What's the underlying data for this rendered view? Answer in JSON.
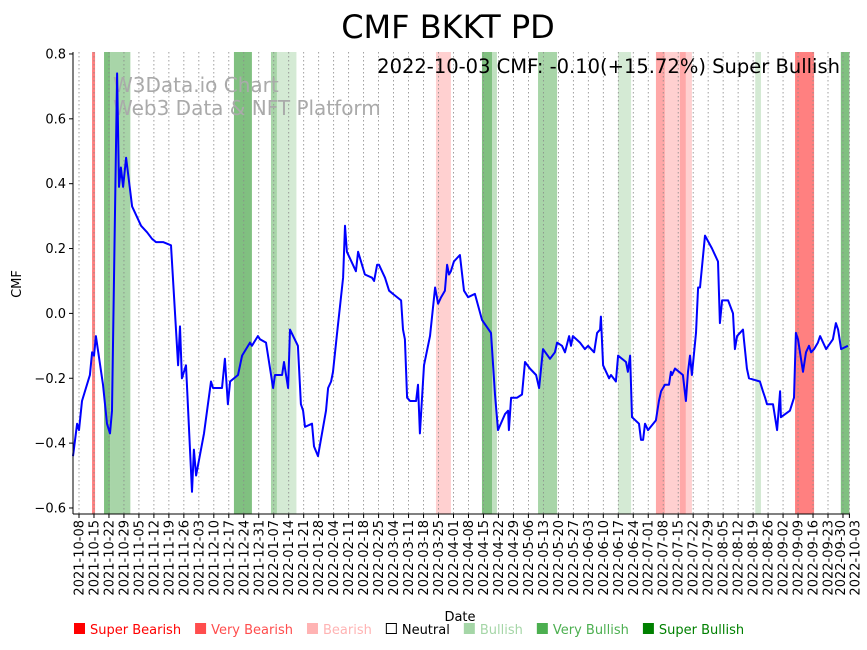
{
  "chart_data": {
    "type": "line",
    "title": "CMF BKKT PD",
    "annotation": "2022-10-03 CMF: -0.10(+15.72%) Super Bullish",
    "watermark": [
      "W3Data.io Chart",
      "Web3 Data & NFT Platform"
    ],
    "xlabel": "Date",
    "ylabel": "CMF",
    "x_start_date": "2021-10-08",
    "x_unit": "days since 2021-10-08",
    "xlim_days": [
      -3,
      360
    ],
    "ylim": [
      -0.62,
      0.8
    ],
    "y_ticks": [
      -0.6,
      -0.4,
      -0.2,
      0.0,
      0.2,
      0.4,
      0.6,
      0.8
    ],
    "y_tick_labels": [
      "−0.6",
      "−0.4",
      "−0.2",
      "0.0",
      "0.2",
      "0.4",
      "0.6",
      "0.8"
    ],
    "x_tick_labels": [
      "2021-10-08",
      "2021-10-15",
      "2021-10-22",
      "2021-10-29",
      "2021-11-05",
      "2021-11-12",
      "2021-11-19",
      "2021-11-26",
      "2021-12-03",
      "2021-12-10",
      "2021-12-17",
      "2021-12-24",
      "2021-12-31",
      "2022-01-07",
      "2022-01-14",
      "2022-01-21",
      "2022-01-28",
      "2022-02-04",
      "2022-02-11",
      "2022-02-18",
      "2022-02-25",
      "2022-03-04",
      "2022-03-11",
      "2022-03-18",
      "2022-03-25",
      "2022-04-01",
      "2022-04-08",
      "2022-04-15",
      "2022-04-22",
      "2022-04-29",
      "2022-05-06",
      "2022-05-13",
      "2022-05-20",
      "2022-05-27",
      "2022-06-03",
      "2022-06-10",
      "2022-06-17",
      "2022-06-24",
      "2022-07-01",
      "2022-07-08",
      "2022-07-15",
      "2022-07-22",
      "2022-07-29",
      "2022-08-05",
      "2022-08-12",
      "2022-08-19",
      "2022-08-26",
      "2022-09-02",
      "2022-09-09",
      "2022-09-16",
      "2022-09-23",
      "2022-09-30",
      "2022-10-03"
    ],
    "grid": "vertical dotted at each x tick",
    "line_color": "#0000ff",
    "series": [
      {
        "name": "CMF",
        "points": [
          [
            -2.8,
            -0.44
          ],
          [
            -0.9,
            -0.34
          ],
          [
            0,
            -0.36
          ],
          [
            1.4,
            -0.27
          ],
          [
            5.1,
            -0.19
          ],
          [
            6.1,
            -0.12
          ],
          [
            7.0,
            -0.13
          ],
          [
            7.9,
            -0.07
          ],
          [
            11.2,
            -0.22
          ],
          [
            13.1,
            -0.34
          ],
          [
            14.5,
            -0.37
          ],
          [
            15.4,
            -0.3
          ],
          [
            17.8,
            0.74
          ],
          [
            18.7,
            0.39
          ],
          [
            19.6,
            0.45
          ],
          [
            20.6,
            0.39
          ],
          [
            22.0,
            0.48
          ],
          [
            24.8,
            0.33
          ],
          [
            29.0,
            0.27
          ],
          [
            31.8,
            0.25
          ],
          [
            34.1,
            0.23
          ],
          [
            36.0,
            0.22
          ],
          [
            39.3,
            0.22
          ],
          [
            43.0,
            0.21
          ],
          [
            46.3,
            -0.16
          ],
          [
            47.2,
            -0.04
          ],
          [
            48.1,
            -0.2
          ],
          [
            50.0,
            -0.16
          ],
          [
            52.8,
            -0.55
          ],
          [
            53.7,
            -0.42
          ],
          [
            54.7,
            -0.5
          ],
          [
            58.4,
            -0.37
          ],
          [
            61.7,
            -0.21
          ],
          [
            62.6,
            -0.23
          ],
          [
            66.8,
            -0.23
          ],
          [
            68.2,
            -0.14
          ],
          [
            69.6,
            -0.28
          ],
          [
            70.6,
            -0.21
          ],
          [
            74.3,
            -0.19
          ],
          [
            76.2,
            -0.13
          ],
          [
            79.9,
            -0.09
          ],
          [
            80.8,
            -0.1
          ],
          [
            83.6,
            -0.07
          ],
          [
            84.6,
            -0.08
          ],
          [
            87.4,
            -0.09
          ],
          [
            90.7,
            -0.23
          ],
          [
            91.6,
            -0.19
          ],
          [
            94.9,
            -0.19
          ],
          [
            95.8,
            -0.15
          ],
          [
            97.7,
            -0.23
          ],
          [
            98.6,
            -0.05
          ],
          [
            102.3,
            -0.1
          ],
          [
            103.7,
            -0.28
          ],
          [
            104.7,
            -0.3
          ],
          [
            105.6,
            -0.35
          ],
          [
            108.9,
            -0.34
          ],
          [
            109.8,
            -0.41
          ],
          [
            111.7,
            -0.44
          ],
          [
            115.4,
            -0.3
          ],
          [
            116.4,
            -0.23
          ],
          [
            117.8,
            -0.21
          ],
          [
            118.7,
            -0.18
          ],
          [
            120.6,
            -0.06
          ],
          [
            123.4,
            0.11
          ],
          [
            124.3,
            0.27
          ],
          [
            125.2,
            0.19
          ],
          [
            129.4,
            0.13
          ],
          [
            130.4,
            0.19
          ],
          [
            133.6,
            0.12
          ],
          [
            136.9,
            0.11
          ],
          [
            137.9,
            0.1
          ],
          [
            139.3,
            0.15
          ],
          [
            140.2,
            0.15
          ],
          [
            143.0,
            0.11
          ],
          [
            144.9,
            0.07
          ],
          [
            146.7,
            0.06
          ],
          [
            150.5,
            0.04
          ],
          [
            151.4,
            -0.05
          ],
          [
            152.3,
            -0.08
          ],
          [
            153.3,
            -0.26
          ],
          [
            154.7,
            -0.27
          ],
          [
            157.5,
            -0.27
          ],
          [
            158.4,
            -0.22
          ],
          [
            159.3,
            -0.37
          ],
          [
            161.2,
            -0.16
          ],
          [
            164.0,
            -0.07
          ],
          [
            166.4,
            0.08
          ],
          [
            167.8,
            0.03
          ],
          [
            169.2,
            0.05
          ],
          [
            171.0,
            0.07
          ],
          [
            172.0,
            0.15
          ],
          [
            172.9,
            0.12
          ],
          [
            173.8,
            0.13
          ],
          [
            175.2,
            0.16
          ],
          [
            178.0,
            0.18
          ],
          [
            179.9,
            0.07
          ],
          [
            181.8,
            0.05
          ],
          [
            185.0,
            0.06
          ],
          [
            188.3,
            -0.02
          ],
          [
            192.5,
            -0.06
          ],
          [
            194.4,
            -0.25
          ],
          [
            195.8,
            -0.36
          ],
          [
            199.1,
            -0.31
          ],
          [
            200.5,
            -0.3
          ],
          [
            200.9,
            -0.36
          ],
          [
            201.9,
            -0.26
          ],
          [
            204.7,
            -0.26
          ],
          [
            207.0,
            -0.25
          ],
          [
            208.4,
            -0.15
          ],
          [
            210.7,
            -0.17
          ],
          [
            213.6,
            -0.19
          ],
          [
            215.0,
            -0.23
          ],
          [
            216.8,
            -0.11
          ],
          [
            220.1,
            -0.14
          ],
          [
            222.4,
            -0.12
          ],
          [
            223.4,
            -0.09
          ],
          [
            225.7,
            -0.1
          ],
          [
            227.1,
            -0.12
          ],
          [
            229.0,
            -0.07
          ],
          [
            229.9,
            -0.1
          ],
          [
            230.8,
            -0.07
          ],
          [
            234.1,
            -0.09
          ],
          [
            236.4,
            -0.11
          ],
          [
            237.9,
            -0.1
          ],
          [
            240.7,
            -0.12
          ],
          [
            242.1,
            -0.06
          ],
          [
            243.5,
            -0.05
          ],
          [
            243.9,
            -0.01
          ],
          [
            244.9,
            -0.16
          ],
          [
            247.7,
            -0.2
          ],
          [
            248.6,
            -0.19
          ],
          [
            250.9,
            -0.21
          ],
          [
            251.9,
            -0.13
          ],
          [
            255.6,
            -0.15
          ],
          [
            256.5,
            -0.18
          ],
          [
            257.5,
            -0.13
          ],
          [
            258.4,
            -0.32
          ],
          [
            261.7,
            -0.34
          ],
          [
            262.6,
            -0.39
          ],
          [
            263.6,
            -0.39
          ],
          [
            264.5,
            -0.34
          ],
          [
            265.9,
            -0.36
          ],
          [
            269.6,
            -0.33
          ],
          [
            271.0,
            -0.27
          ],
          [
            272.0,
            -0.24
          ],
          [
            273.8,
            -0.22
          ],
          [
            275.7,
            -0.22
          ],
          [
            276.6,
            -0.18
          ],
          [
            277.1,
            -0.19
          ],
          [
            278.5,
            -0.17
          ],
          [
            282.2,
            -0.19
          ],
          [
            283.6,
            -0.27
          ],
          [
            284.6,
            -0.18
          ],
          [
            285.5,
            -0.13
          ],
          [
            286.4,
            -0.19
          ],
          [
            288.3,
            -0.06
          ],
          [
            289.3,
            0.08
          ],
          [
            290.2,
            0.08
          ],
          [
            292.5,
            0.24
          ],
          [
            295.8,
            0.2
          ],
          [
            298.6,
            0.16
          ],
          [
            299.5,
            -0.03
          ],
          [
            300.5,
            0.04
          ],
          [
            303.3,
            0.04
          ],
          [
            305.6,
            0.0
          ],
          [
            306.5,
            -0.11
          ],
          [
            307.5,
            -0.07
          ],
          [
            310.3,
            -0.05
          ],
          [
            310.7,
            -0.08
          ],
          [
            312.1,
            -0.17
          ],
          [
            313.1,
            -0.2
          ],
          [
            318.2,
            -0.21
          ],
          [
            319.6,
            -0.24
          ],
          [
            320.6,
            -0.26
          ],
          [
            321.5,
            -0.28
          ],
          [
            324.3,
            -0.28
          ],
          [
            326.2,
            -0.36
          ],
          [
            327.6,
            -0.24
          ],
          [
            328.0,
            -0.32
          ],
          [
            332.2,
            -0.3
          ],
          [
            334.1,
            -0.26
          ],
          [
            335.0,
            -0.06
          ],
          [
            336.0,
            -0.08
          ],
          [
            338.3,
            -0.18
          ],
          [
            339.7,
            -0.12
          ],
          [
            341.1,
            -0.1
          ],
          [
            342.1,
            -0.12
          ],
          [
            343.5,
            -0.11
          ],
          [
            345.3,
            -0.09
          ],
          [
            346.3,
            -0.07
          ],
          [
            349.1,
            -0.11
          ],
          [
            352.3,
            -0.08
          ],
          [
            353.7,
            -0.03
          ],
          [
            354.7,
            -0.05
          ],
          [
            356.1,
            -0.11
          ],
          [
            359.3,
            -0.1
          ]
        ]
      }
    ],
    "bands": [
      {
        "from": 6.1,
        "to": 7.5,
        "type": "Very Bearish",
        "color": "#ff8080"
      },
      {
        "from": 11.7,
        "to": 14.5,
        "type": "Very Bullish",
        "color": "#80c080"
      },
      {
        "from": 14.5,
        "to": 24,
        "type": "Bullish",
        "color": "#a8d5a8"
      },
      {
        "from": 72.4,
        "to": 80.8,
        "type": "Very Bullish",
        "color": "#80c080"
      },
      {
        "from": 89.7,
        "to": 92.5,
        "type": "Bullish",
        "color": "#a8d5a8"
      },
      {
        "from": 92.5,
        "to": 101.6,
        "type": "Bullish",
        "color": "#d4ead4"
      },
      {
        "from": 166.8,
        "to": 173.8,
        "type": "Bearish",
        "color": "#ffd0d0"
      },
      {
        "from": 188.3,
        "to": 193,
        "type": "Very Bullish",
        "color": "#80c080"
      },
      {
        "from": 193,
        "to": 195.3,
        "type": "Bullish",
        "color": "#c0e0c0"
      },
      {
        "from": 214.5,
        "to": 223.4,
        "type": "Bullish",
        "color": "#a8d5a8"
      },
      {
        "from": 251.9,
        "to": 258,
        "type": "Bullish",
        "color": "#d4ead4"
      },
      {
        "from": 269.6,
        "to": 273.8,
        "type": "Bearish",
        "color": "#ffa8a8"
      },
      {
        "from": 273.8,
        "to": 280.8,
        "type": "Bearish",
        "color": "#ffd0d0"
      },
      {
        "from": 280.8,
        "to": 283.6,
        "type": "Bearish",
        "color": "#ffa8a8"
      },
      {
        "from": 283.6,
        "to": 286.4,
        "type": "Bearish",
        "color": "#ffd0d0"
      },
      {
        "from": 316,
        "to": 318.7,
        "type": "Bullish",
        "color": "#d4ead4"
      },
      {
        "from": 334.6,
        "to": 343.5,
        "type": "Very Bearish",
        "color": "#ff8080"
      },
      {
        "from": 356,
        "to": 360,
        "type": "Very Bullish",
        "color": "#80c080"
      }
    ],
    "legend": {
      "placement": "bottom",
      "items": [
        {
          "label": "Super Bearish",
          "color": "#ff0000"
        },
        {
          "label": "Very Bearish",
          "color": "#ff4d4d"
        },
        {
          "label": "Bearish",
          "color": "#ffb3b3"
        },
        {
          "label": "Neutral",
          "color": "#000000",
          "box": "#ffffff"
        },
        {
          "label": "Bullish",
          "color": "#a5d6a7"
        },
        {
          "label": "Very Bullish",
          "color": "#4caf50"
        },
        {
          "label": "Super Bullish",
          "color": "#008000"
        }
      ]
    }
  }
}
